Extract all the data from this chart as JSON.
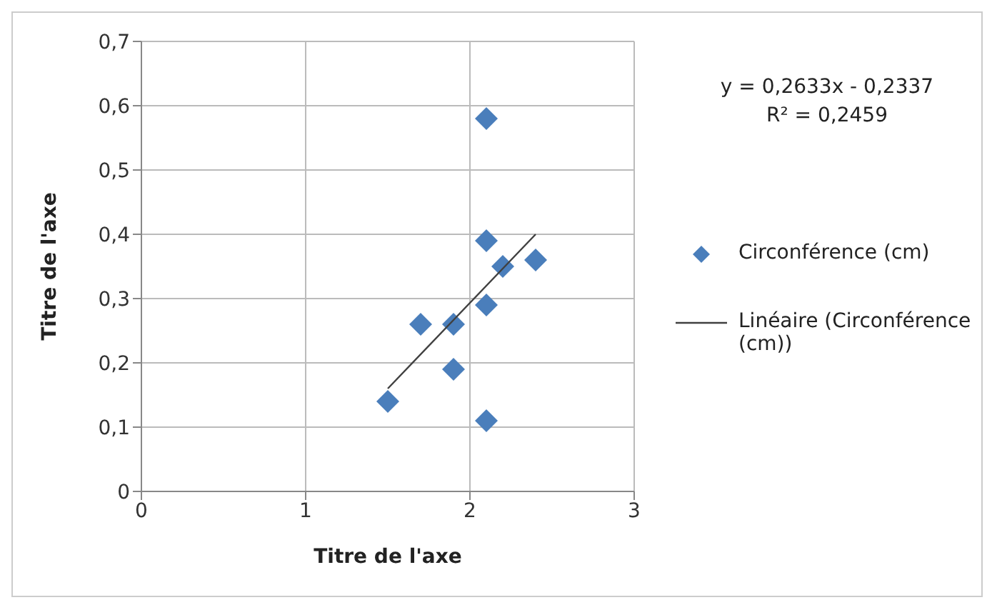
{
  "chart_data": {
    "type": "scatter",
    "xlabel": "Titre de l'axe",
    "ylabel": "Titre de l'axe",
    "series": [
      {
        "name": "Circonférence (cm)",
        "color": "#4a7ebb",
        "marker": "diamond",
        "x": [
          1.5,
          1.7,
          1.9,
          1.9,
          2.1,
          2.1,
          2.1,
          2.1,
          2.2,
          2.4
        ],
        "values": [
          0.14,
          0.26,
          0.26,
          0.19,
          0.58,
          0.39,
          0.29,
          0.11,
          0.35,
          0.36
        ]
      },
      {
        "name": "Linéaire (Circonférence (cm))",
        "type": "line",
        "color": "#404040",
        "marker": "none",
        "x": [
          1.5,
          2.4
        ],
        "values": [
          0.16,
          0.4
        ]
      }
    ],
    "annotations": [
      "y = 0,2633x - 0,2337",
      "R² = 0,2459"
    ],
    "xlim": [
      0,
      3
    ],
    "xticks": [
      0,
      1,
      2,
      3
    ],
    "ylim": [
      0,
      0.7
    ],
    "yticks": [
      0,
      {
        "value": 0.1,
        "label": "0,1"
      },
      {
        "value": 0.2,
        "label": "0,2"
      },
      {
        "value": 0.3,
        "label": "0,3"
      },
      {
        "value": 0.4,
        "label": "0,4"
      },
      {
        "value": 0.5,
        "label": "0,5"
      },
      {
        "value": 0.6,
        "label": "0,6"
      },
      {
        "value": 0.7,
        "label": "0,7"
      }
    ],
    "grid": true,
    "legend": "right"
  }
}
